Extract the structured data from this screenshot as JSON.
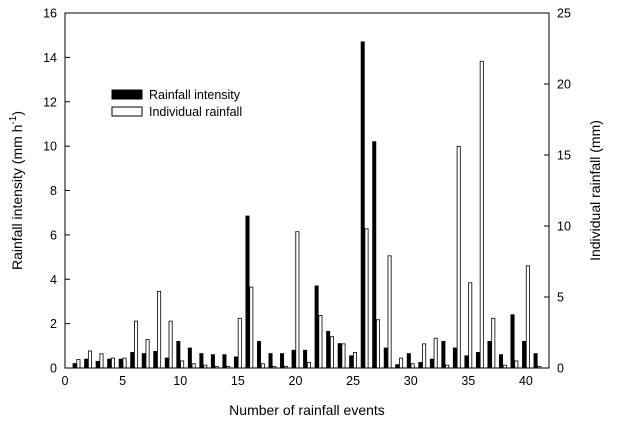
{
  "chart_data": {
    "type": "bar",
    "xlabel": "Number of rainfall events",
    "x": [
      1,
      2,
      3,
      4,
      5,
      6,
      7,
      8,
      9,
      10,
      11,
      12,
      13,
      14,
      15,
      16,
      17,
      18,
      19,
      20,
      21,
      22,
      23,
      24,
      25,
      26,
      27,
      28,
      29,
      30,
      31,
      32,
      33,
      34,
      35,
      36,
      37,
      38,
      39,
      40,
      41
    ],
    "xlim": [
      0,
      42
    ],
    "xticks": [
      0,
      5,
      10,
      15,
      20,
      25,
      30,
      35,
      40
    ],
    "y_left": {
      "label": "Rainfall intensity (mm h",
      "label_superscript": "-1",
      "label_suffix": ")",
      "ylim": [
        0,
        16
      ],
      "ticks": [
        0,
        2,
        4,
        6,
        8,
        10,
        12,
        14,
        16
      ]
    },
    "y_right": {
      "label": "Individual rainfall (mm)",
      "ylim": [
        0,
        25
      ],
      "ticks": [
        0,
        5,
        10,
        15,
        20,
        25
      ]
    },
    "series": [
      {
        "name": "Rainfall intensity",
        "axis": "left",
        "fill": "#000000",
        "values": [
          0.2,
          0.4,
          0.3,
          0.4,
          0.4,
          0.7,
          0.65,
          0.75,
          0.45,
          1.2,
          0.9,
          0.65,
          0.6,
          0.6,
          0.5,
          6.85,
          1.2,
          0.65,
          0.65,
          0.8,
          0.8,
          3.7,
          1.65,
          1.1,
          0.55,
          14.7,
          10.2,
          0.9,
          0.15,
          0.65,
          0.25,
          0.4,
          1.2,
          0.9,
          0.55,
          0.7,
          1.2,
          0.6,
          2.4,
          1.2,
          0.65
        ]
      },
      {
        "name": "Individual rainfall",
        "axis": "right",
        "fill": "#ffffff",
        "values": [
          0.6,
          1.2,
          1.0,
          0.7,
          0.7,
          3.3,
          2.0,
          5.4,
          3.3,
          0.5,
          0.3,
          0.2,
          0.1,
          0.1,
          3.5,
          5.7,
          0.3,
          0.1,
          0.1,
          9.6,
          0.4,
          3.7,
          2.2,
          1.7,
          1.1,
          9.8,
          3.4,
          7.9,
          0.7,
          0.3,
          1.7,
          2.1,
          0.2,
          15.6,
          6.0,
          21.6,
          3.5,
          0.2,
          0.5,
          7.2,
          0.1
        ]
      }
    ],
    "legend": {
      "placement": "upper-left"
    },
    "grid": false
  }
}
